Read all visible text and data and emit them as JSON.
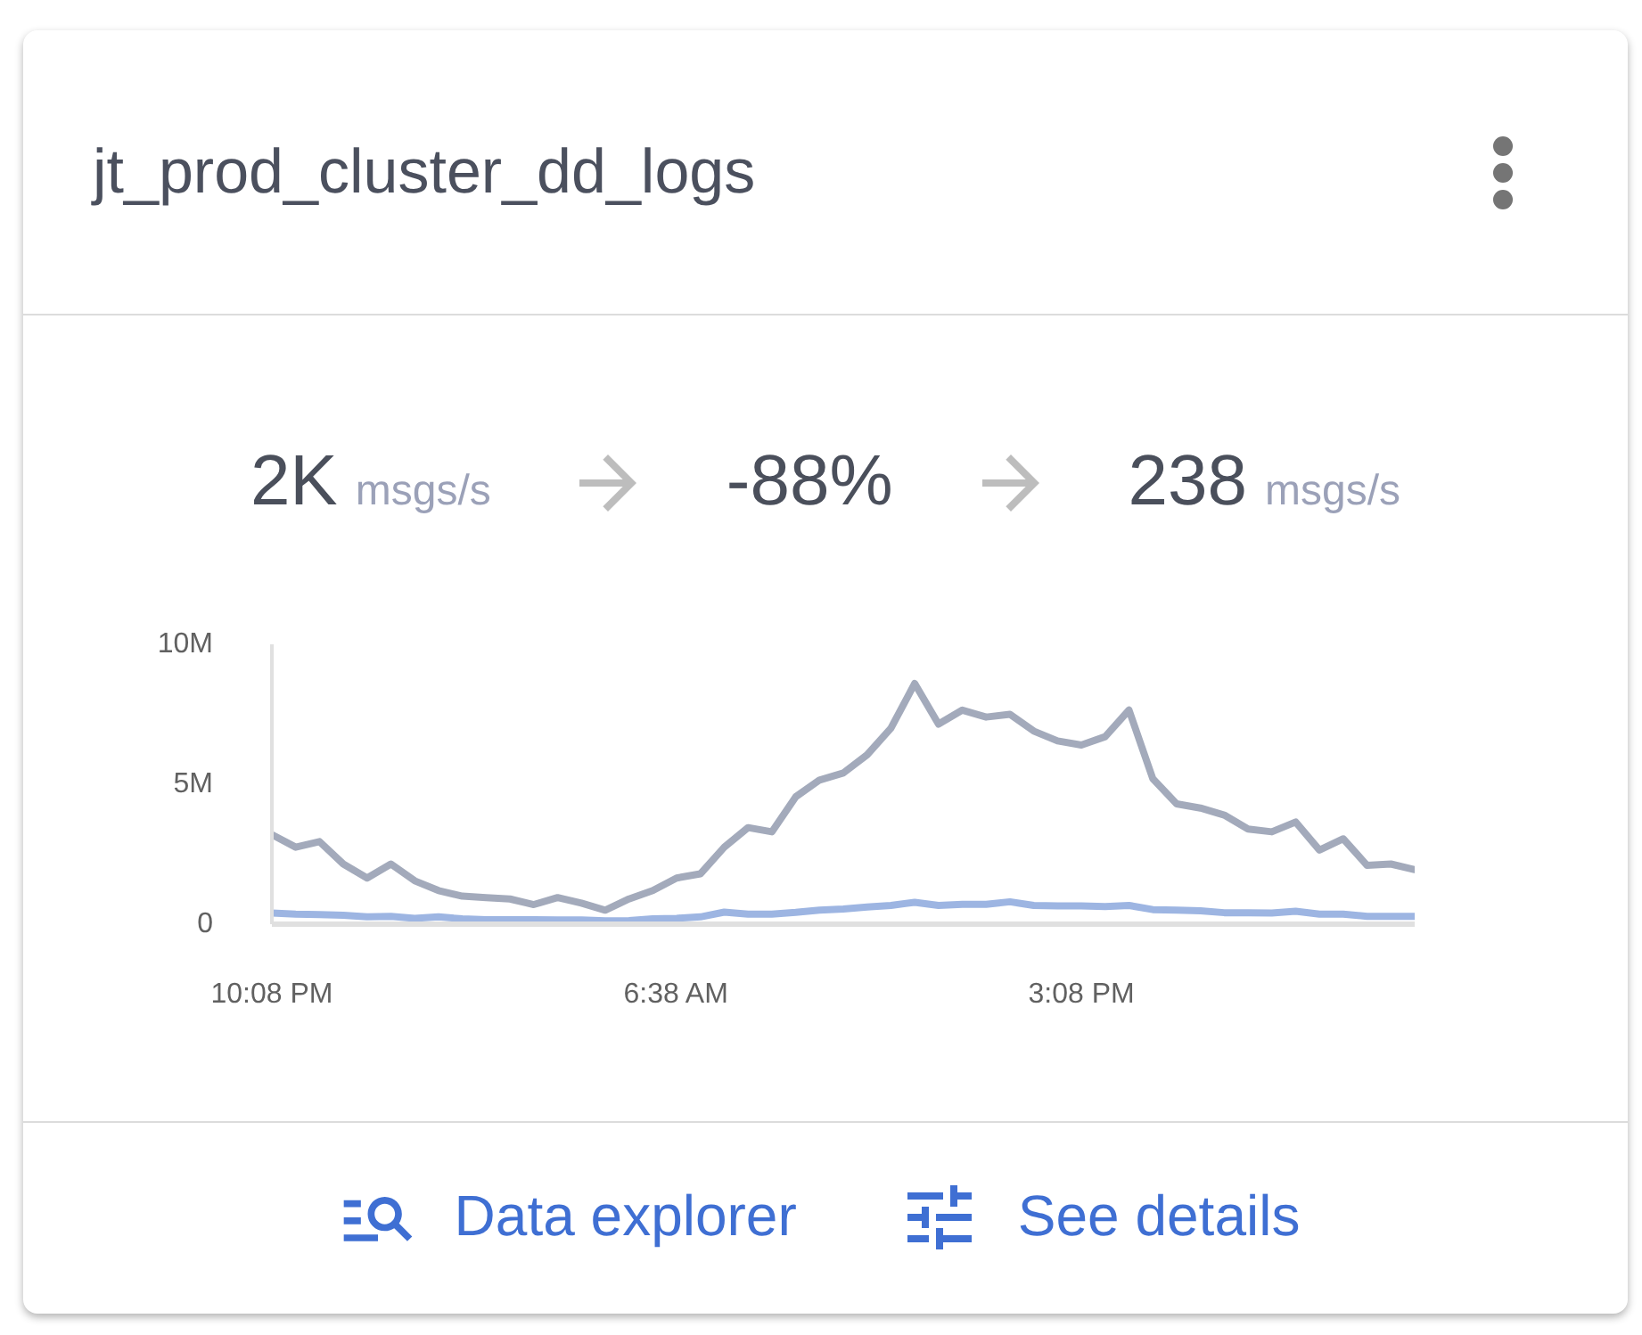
{
  "chart_data": {
    "type": "line",
    "title": "jt_prod_cluster_dd_logs",
    "annotations": [
      "2K msgs/s",
      "-88%",
      "238 msgs/s",
      "Data explorer",
      "See details"
    ],
    "categories": [
      "10:08 PM",
      null,
      null,
      null,
      null,
      null,
      null,
      null,
      null,
      null,
      null,
      null,
      null,
      null,
      null,
      null,
      null,
      "6:38 AM",
      null,
      null,
      null,
      null,
      null,
      null,
      null,
      null,
      null,
      null,
      null,
      null,
      null,
      null,
      null,
      null,
      "3:08 PM",
      null,
      null,
      null,
      null,
      null,
      null,
      null,
      null,
      null,
      null,
      null,
      null,
      null,
      null
    ],
    "ylim": [
      0,
      10000000
    ],
    "yticks": [
      0,
      {
        "value": 5000000,
        "label": "5M"
      },
      {
        "value": 10000000,
        "label": "10M"
      }
    ],
    "grid": false,
    "series": [
      {
        "color": "#a3aabb",
        "values": [
          3200000,
          2750000,
          2950000,
          2150000,
          1650000,
          2150000,
          1550000,
          1200000,
          1000000,
          950000,
          900000,
          700000,
          950000,
          750000,
          500000,
          900000,
          1200000,
          1650000,
          1800000,
          2750000,
          3450000,
          3300000,
          4550000,
          5150000,
          5400000,
          6050000,
          7000000,
          8600000,
          7150000,
          7650000,
          7400000,
          7500000,
          6900000,
          6550000,
          6400000,
          6700000,
          7650000,
          5200000,
          4300000,
          4150000,
          3900000,
          3400000,
          3300000,
          3650000,
          2650000,
          3050000,
          2100000,
          2150000,
          1950000
        ]
      },
      {
        "color": "#9db5e2",
        "values": [
          400000,
          360000,
          340000,
          320000,
          260000,
          280000,
          210000,
          260000,
          190000,
          160000,
          160000,
          160000,
          150000,
          150000,
          120000,
          130000,
          190000,
          210000,
          260000,
          430000,
          360000,
          360000,
          420000,
          500000,
          540000,
          610000,
          670000,
          780000,
          670000,
          710000,
          710000,
          800000,
          670000,
          650000,
          650000,
          630000,
          670000,
          520000,
          500000,
          480000,
          410000,
          410000,
          400000,
          460000,
          360000,
          360000,
          280000,
          280000,
          280000
        ]
      }
    ]
  }
}
